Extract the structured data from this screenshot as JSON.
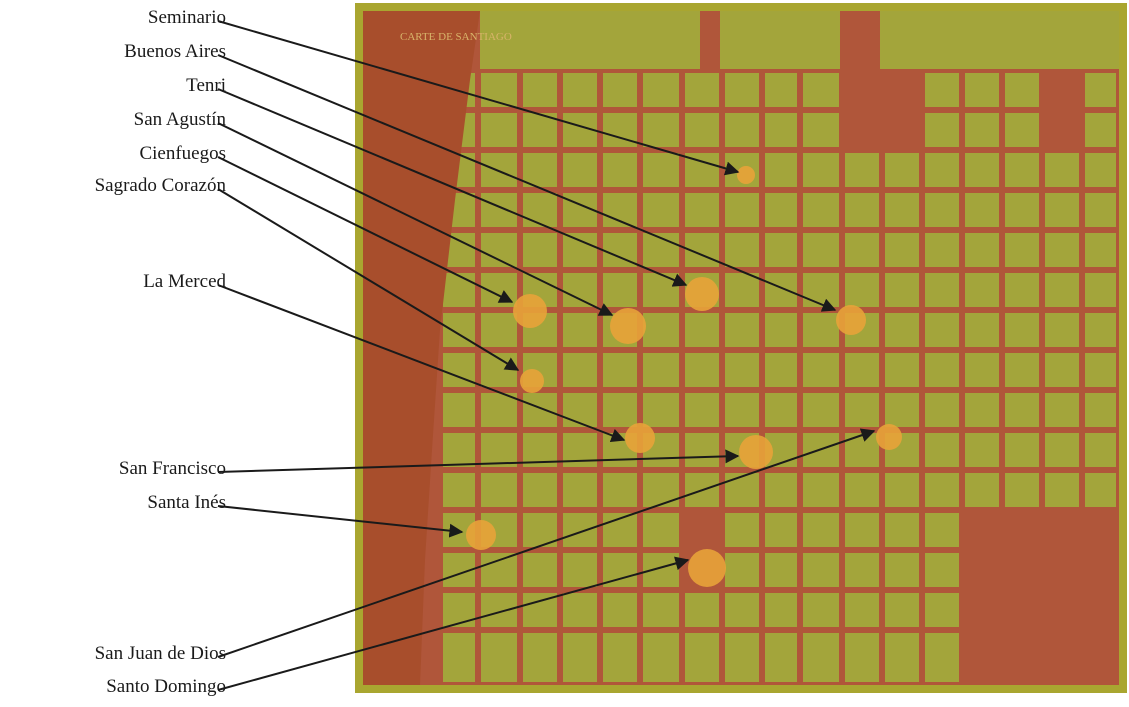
{
  "map": {
    "colors": {
      "frame": "#a7a42e",
      "district": "#a3a53b",
      "street": "#b0563a",
      "river": "#a84e2c",
      "church_marker": "#e8a33a",
      "arrow": "#1a1a1a"
    },
    "frame_title": "CARTE DE SANTIAGO",
    "churches": [
      {
        "name": "Seminario"
      },
      {
        "name": "Buenos Aires"
      },
      {
        "name": "Tenri"
      },
      {
        "name": "San Agustín"
      },
      {
        "name": "Cienfuegos"
      },
      {
        "name": "Sagrado Corazón"
      },
      {
        "name": "La Merced"
      },
      {
        "name": "San Francisco"
      },
      {
        "name": "Santa Inés"
      },
      {
        "name": "San Juan de Dios"
      },
      {
        "name": "Santo Domingo"
      }
    ]
  }
}
